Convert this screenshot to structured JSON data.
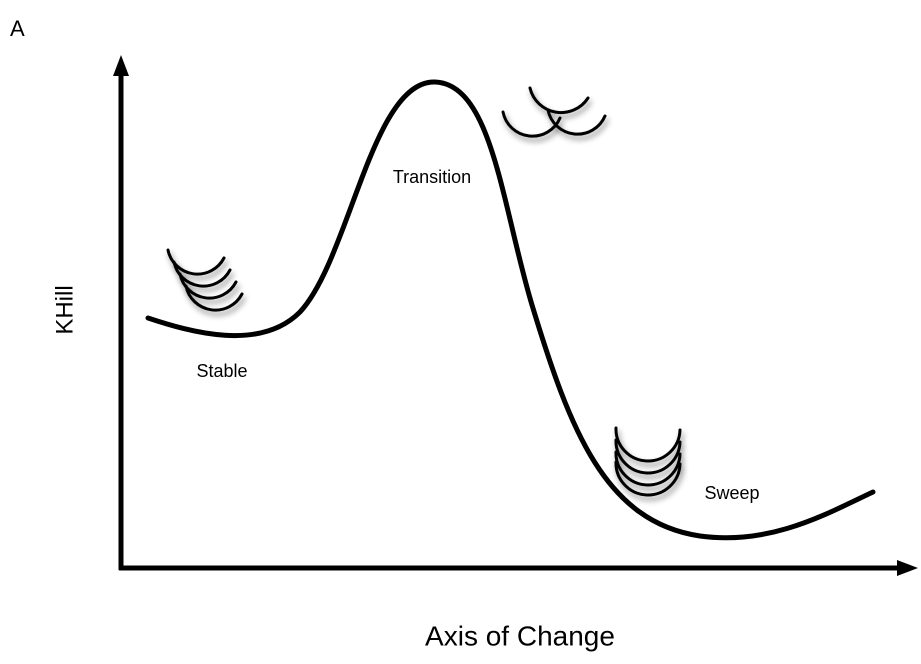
{
  "panel_label": "A",
  "y_axis_label": "KHill",
  "x_axis_label": "Axis of Change",
  "annotations": [
    "Stable",
    "Transition",
    "Sweep"
  ]
}
